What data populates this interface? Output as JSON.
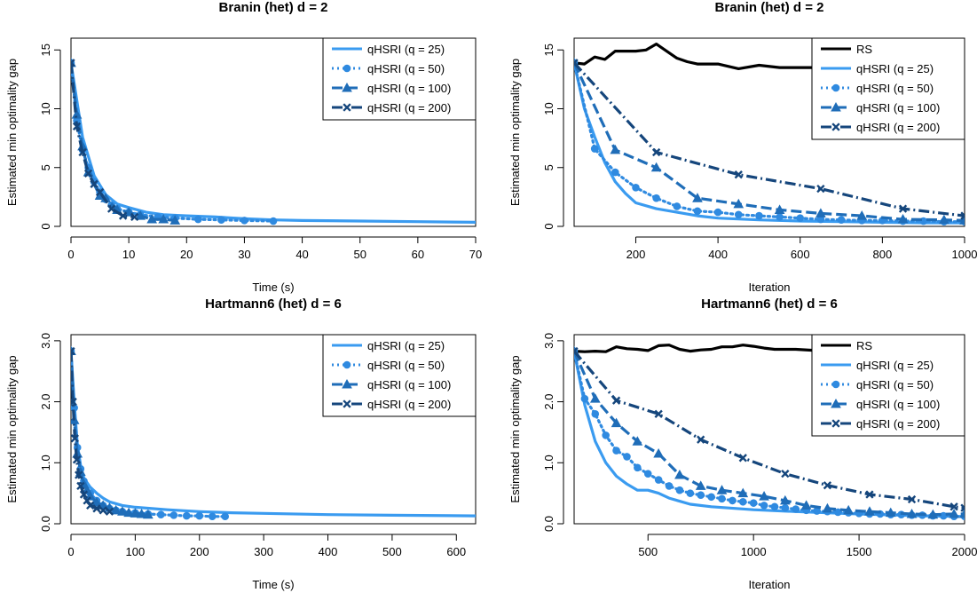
{
  "chart_data": [
    {
      "type": "line",
      "title": "Branin (het) d = 2",
      "xlabel": "Time (s)",
      "ylabel": "Estimated min optimality gap",
      "xlim": [
        0,
        70
      ],
      "ylim": [
        0,
        16
      ],
      "xticks": [
        0,
        10,
        20,
        30,
        40,
        50,
        60,
        70
      ],
      "yticks": [
        0,
        5,
        10,
        15
      ],
      "legend_position": "top-right",
      "series": [
        {
          "name": "qHSRI (q = 25)",
          "style": "solid",
          "color": "#3a9bf0",
          "marker": "",
          "x": [
            0,
            2,
            4,
            6,
            8,
            10,
            13,
            16,
            20,
            25,
            30,
            35,
            40,
            50,
            60,
            70
          ],
          "y": [
            13.9,
            7.6,
            4.3,
            2.7,
            1.9,
            1.6,
            1.2,
            1.0,
            0.9,
            0.8,
            0.65,
            0.55,
            0.5,
            0.45,
            0.4,
            0.35
          ]
        },
        {
          "name": "qHSRI (q = 50)",
          "style": "dotted",
          "color": "#2f8ae0",
          "marker": "circle",
          "x": [
            0,
            1,
            2,
            3,
            4,
            5,
            6,
            7,
            8,
            10,
            12,
            15,
            18,
            22,
            26,
            30,
            35
          ],
          "y": [
            13.9,
            9.0,
            6.5,
            5.0,
            3.8,
            2.9,
            2.3,
            1.8,
            1.5,
            1.2,
            1.0,
            0.8,
            0.7,
            0.6,
            0.55,
            0.5,
            0.45
          ]
        },
        {
          "name": "qHSRI (q = 100)",
          "style": "longdash",
          "color": "#1f6db8",
          "marker": "triangle",
          "x": [
            0,
            1,
            2,
            3,
            5,
            6,
            8,
            10,
            12,
            14,
            16,
            18
          ],
          "y": [
            13.9,
            9.5,
            6.8,
            4.6,
            2.6,
            2.4,
            1.4,
            1.2,
            0.9,
            0.6,
            0.6,
            0.5
          ]
        },
        {
          "name": "qHSRI (q = 200)",
          "style": "dashdot",
          "color": "#15467c",
          "marker": "cross",
          "x": [
            0,
            1,
            2,
            3,
            4,
            5,
            7,
            9,
            11
          ],
          "y": [
            13.9,
            8.5,
            6.3,
            4.5,
            3.6,
            2.9,
            1.5,
            0.9,
            0.8
          ]
        }
      ]
    },
    {
      "type": "line",
      "title": "Branin (het) d = 2",
      "xlabel": "Iteration",
      "ylabel": "Estimated min optimality gap",
      "xlim": [
        50,
        1000
      ],
      "ylim": [
        0,
        16
      ],
      "xticks": [
        200,
        400,
        600,
        800,
        1000
      ],
      "yticks": [
        0,
        5,
        10,
        15
      ],
      "legend_position": "top-right",
      "series": [
        {
          "name": "RS",
          "style": "solid",
          "color": "#000000",
          "marker": "",
          "x": [
            50,
            75,
            100,
            125,
            150,
            200,
            225,
            250,
            275,
            300,
            325,
            350,
            400,
            450,
            500,
            550,
            600,
            650,
            700,
            750,
            800,
            850,
            900,
            950,
            1000
          ],
          "y": [
            13.9,
            13.8,
            14.4,
            14.2,
            14.9,
            14.9,
            15.0,
            15.5,
            14.9,
            14.3,
            14.0,
            13.8,
            13.8,
            13.4,
            13.7,
            13.5,
            13.5,
            13.5,
            13.2,
            13.0,
            12.9,
            12.7,
            12.6,
            12.5,
            12.0
          ]
        },
        {
          "name": "qHSRI (q = 25)",
          "style": "solid",
          "color": "#3a9bf0",
          "marker": "",
          "x": [
            50,
            75,
            100,
            125,
            150,
            175,
            200,
            250,
            300,
            350,
            400,
            500,
            600,
            700,
            800,
            900,
            1000
          ],
          "y": [
            13.9,
            10.0,
            7.6,
            5.4,
            3.8,
            2.8,
            2.0,
            1.5,
            1.2,
            0.9,
            0.7,
            0.55,
            0.45,
            0.4,
            0.35,
            0.3,
            0.3
          ]
        },
        {
          "name": "qHSRI (q = 50)",
          "style": "dotted",
          "color": "#2f8ae0",
          "marker": "circle",
          "x": [
            50,
            100,
            150,
            200,
            250,
            300,
            350,
            400,
            450,
            500,
            550,
            600,
            650,
            700,
            750,
            800,
            850,
            900,
            950,
            1000
          ],
          "y": [
            13.9,
            6.6,
            4.6,
            3.3,
            2.4,
            1.7,
            1.3,
            1.2,
            1.0,
            0.9,
            0.8,
            0.7,
            0.6,
            0.55,
            0.5,
            0.5,
            0.45,
            0.45,
            0.4,
            0.4
          ]
        },
        {
          "name": "qHSRI (q = 100)",
          "style": "longdash",
          "color": "#1f6db8",
          "marker": "triangle",
          "x": [
            50,
            150,
            250,
            350,
            450,
            550,
            650,
            750,
            850,
            950,
            1000
          ],
          "y": [
            13.9,
            6.5,
            5.0,
            2.4,
            1.9,
            1.4,
            1.1,
            0.9,
            0.6,
            0.55,
            0.5
          ]
        },
        {
          "name": "qHSRI (q = 200)",
          "style": "dashdot",
          "color": "#15467c",
          "marker": "cross",
          "x": [
            50,
            250,
            450,
            650,
            850,
            1000
          ],
          "y": [
            13.9,
            6.3,
            4.4,
            3.2,
            1.5,
            0.9
          ]
        }
      ]
    },
    {
      "type": "line",
      "title": "Hartmann6 (het) d = 6",
      "xlabel": "Time (s)",
      "ylabel": "Estimated min optimality gap",
      "xlim": [
        0,
        630
      ],
      "ylim": [
        0,
        3.1
      ],
      "xticks": [
        0,
        100,
        200,
        300,
        400,
        500,
        600
      ],
      "yticks": [
        0.0,
        1.0,
        2.0,
        3.0
      ],
      "legend_position": "top-right",
      "series": [
        {
          "name": "qHSRI (q = 25)",
          "style": "solid",
          "color": "#3a9bf0",
          "marker": "",
          "x": [
            0,
            5,
            10,
            15,
            20,
            30,
            40,
            50,
            60,
            80,
            100,
            150,
            200,
            250,
            300,
            400,
            500,
            630
          ],
          "y": [
            2.83,
            2.0,
            1.3,
            0.95,
            0.75,
            0.6,
            0.5,
            0.42,
            0.36,
            0.3,
            0.27,
            0.23,
            0.2,
            0.18,
            0.17,
            0.15,
            0.14,
            0.13
          ]
        },
        {
          "name": "qHSRI (q = 50)",
          "style": "dotted",
          "color": "#2f8ae0",
          "marker": "circle",
          "x": [
            0,
            5,
            10,
            15,
            20,
            30,
            40,
            50,
            60,
            70,
            80,
            100,
            120,
            140,
            160,
            180,
            200,
            220,
            240
          ],
          "y": [
            2.83,
            1.9,
            1.25,
            0.9,
            0.7,
            0.5,
            0.38,
            0.3,
            0.25,
            0.22,
            0.2,
            0.18,
            0.16,
            0.15,
            0.14,
            0.13,
            0.13,
            0.12,
            0.12
          ]
        },
        {
          "name": "qHSRI (q = 100)",
          "style": "longdash",
          "color": "#1f6db8",
          "marker": "triangle",
          "x": [
            0,
            5,
            10,
            15,
            20,
            25,
            30,
            40,
            50,
            60,
            70,
            80,
            90,
            100,
            110,
            120
          ],
          "y": [
            2.83,
            1.7,
            1.15,
            0.85,
            0.65,
            0.55,
            0.45,
            0.35,
            0.3,
            0.26,
            0.22,
            0.2,
            0.18,
            0.17,
            0.16,
            0.15
          ]
        },
        {
          "name": "qHSRI (q = 200)",
          "style": "dashdot",
          "color": "#15467c",
          "marker": "cross",
          "x": [
            0,
            3,
            6,
            9,
            12,
            15,
            20,
            25,
            30,
            40,
            50,
            60
          ],
          "y": [
            2.83,
            2.0,
            1.4,
            1.05,
            0.8,
            0.62,
            0.48,
            0.38,
            0.3,
            0.25,
            0.22,
            0.2
          ]
        }
      ]
    },
    {
      "type": "line",
      "title": "Hartmann6 (het) d = 6",
      "xlabel": "Iteration",
      "ylabel": "Estimated min optimality gap",
      "xlim": [
        150,
        2000
      ],
      "ylim": [
        0,
        3.1
      ],
      "xticks": [
        500,
        1000,
        1500,
        2000
      ],
      "yticks": [
        0.0,
        1.0,
        2.0,
        3.0
      ],
      "legend_position": "top-right",
      "series": [
        {
          "name": "RS",
          "style": "solid",
          "color": "#000000",
          "marker": "",
          "x": [
            150,
            200,
            250,
            300,
            350,
            400,
            450,
            500,
            550,
            600,
            650,
            700,
            750,
            800,
            850,
            900,
            950,
            1000,
            1050,
            1100,
            1200,
            1300,
            1400,
            1500,
            1600,
            1700,
            1800,
            1900,
            2000
          ],
          "y": [
            2.83,
            2.82,
            2.83,
            2.82,
            2.9,
            2.87,
            2.86,
            2.84,
            2.92,
            2.93,
            2.86,
            2.83,
            2.85,
            2.86,
            2.9,
            2.9,
            2.93,
            2.91,
            2.88,
            2.86,
            2.86,
            2.84,
            2.84,
            2.84,
            2.83,
            2.87,
            2.86,
            2.87,
            2.87
          ]
        },
        {
          "name": "qHSRI (q = 25)",
          "style": "solid",
          "color": "#3a9bf0",
          "marker": "",
          "x": [
            150,
            200,
            250,
            300,
            350,
            400,
            450,
            500,
            550,
            600,
            700,
            800,
            1000,
            1200,
            1500,
            1800,
            2000
          ],
          "y": [
            2.83,
            1.95,
            1.35,
            1.0,
            0.78,
            0.65,
            0.55,
            0.55,
            0.5,
            0.42,
            0.32,
            0.28,
            0.23,
            0.2,
            0.16,
            0.13,
            0.12
          ]
        },
        {
          "name": "qHSRI (q = 50)",
          "style": "dotted",
          "color": "#2f8ae0",
          "marker": "circle",
          "x": [
            150,
            200,
            250,
            300,
            350,
            400,
            450,
            500,
            550,
            600,
            650,
            700,
            750,
            800,
            850,
            900,
            950,
            1000,
            1050,
            1100,
            1150,
            1200,
            1250,
            1300,
            1350,
            1400,
            1450,
            1500,
            1550,
            1600,
            1650,
            1700,
            1750,
            1800,
            1850,
            1900,
            1950,
            2000
          ],
          "y": [
            2.83,
            2.05,
            1.8,
            1.45,
            1.2,
            1.1,
            0.92,
            0.82,
            0.72,
            0.62,
            0.55,
            0.5,
            0.47,
            0.44,
            0.41,
            0.38,
            0.36,
            0.34,
            0.3,
            0.28,
            0.26,
            0.24,
            0.22,
            0.21,
            0.2,
            0.19,
            0.18,
            0.17,
            0.16,
            0.16,
            0.15,
            0.15,
            0.14,
            0.14,
            0.13,
            0.13,
            0.12,
            0.12
          ]
        },
        {
          "name": "qHSRI (q = 100)",
          "style": "longdash",
          "color": "#1f6db8",
          "marker": "triangle",
          "x": [
            150,
            250,
            350,
            450,
            550,
            650,
            750,
            850,
            950,
            1050,
            1150,
            1250,
            1350,
            1450,
            1550,
            1650,
            1750,
            1850,
            1950,
            2000
          ],
          "y": [
            2.83,
            2.05,
            1.65,
            1.35,
            1.15,
            0.8,
            0.62,
            0.55,
            0.5,
            0.45,
            0.38,
            0.3,
            0.25,
            0.22,
            0.2,
            0.18,
            0.16,
            0.15,
            0.16,
            0.16
          ]
        },
        {
          "name": "qHSRI (q = 200)",
          "style": "dashdot",
          "color": "#15467c",
          "marker": "cross",
          "x": [
            150,
            350,
            550,
            750,
            950,
            1150,
            1350,
            1550,
            1750,
            1950,
            2000
          ],
          "y": [
            2.83,
            2.02,
            1.8,
            1.38,
            1.08,
            0.82,
            0.63,
            0.48,
            0.4,
            0.28,
            0.26
          ]
        }
      ]
    }
  ]
}
